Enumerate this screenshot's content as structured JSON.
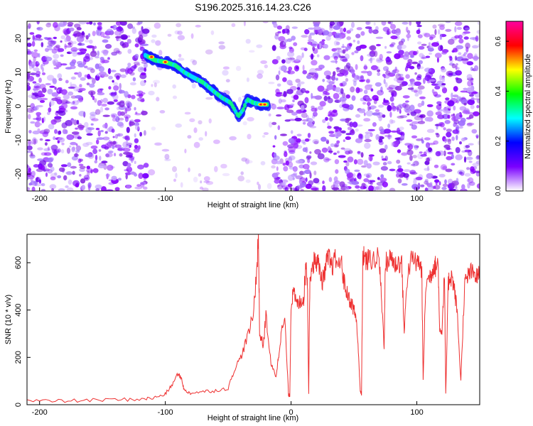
{
  "title": "S196.2025.316.14.23.C26",
  "chart_data": [
    {
      "type": "heatmap",
      "title": "S196.2025.316.14.23.C26",
      "xlabel": "Height of straight line (km)",
      "ylabel": "Frequency (Hz)",
      "xlim": [
        -210,
        150
      ],
      "ylim": [
        -25,
        25
      ],
      "xticks": [
        "-200",
        "-100",
        "0",
        "100"
      ],
      "yticks": [
        "-20",
        "-10",
        "0",
        "10",
        "20"
      ],
      "colorbar": {
        "label": "Normalized spectral amplitude",
        "range": [
          0,
          0.68
        ],
        "ticks": [
          "0.0",
          "0.2",
          "0.4",
          "0.6"
        ],
        "colors": [
          "#ffffff",
          "#7a00ff",
          "#0000ff",
          "#00ffff",
          "#00ff00",
          "#ffff00",
          "#ff0000",
          "#ff00a0"
        ]
      },
      "ridge": {
        "x": [
          -116,
          -108,
          -100,
          -92,
          -85,
          -78,
          -70,
          -62,
          -55,
          -48,
          -42,
          -38,
          -35,
          -30,
          -24,
          -18
        ],
        "y": [
          15,
          13.5,
          13,
          12,
          10,
          8.5,
          7,
          4.5,
          2.5,
          1,
          -3,
          -1,
          2,
          1,
          0.5,
          0.5
        ]
      },
      "gap_x": [
        -115,
        -14
      ]
    },
    {
      "type": "line",
      "xlabel": "Height of straight line (km)",
      "ylabel": "SNR (10 * v/v)",
      "xlim": [
        -210,
        150
      ],
      "ylim": [
        0,
        720
      ],
      "xticks": [
        "-200",
        "-100",
        "0",
        "100"
      ],
      "yticks": [
        "0",
        "200",
        "400",
        "600"
      ],
      "color": "#ee3030",
      "series": [
        {
          "x": [
            -210,
            -190,
            -170,
            -150,
            -130,
            -115,
            -108,
            -100,
            -95,
            -90,
            -87,
            -85,
            -80,
            -70,
            -60,
            -50,
            -45,
            -40,
            -35,
            -30,
            -27,
            -26,
            -25,
            -22,
            -20,
            -16,
            -12,
            -10,
            -8,
            -5,
            -2,
            -1,
            0,
            2,
            5,
            8,
            10,
            12,
            13,
            14,
            15,
            18,
            20,
            22,
            25,
            28,
            30,
            32,
            35,
            40,
            42,
            45,
            48,
            50,
            52,
            54,
            55,
            56,
            57,
            58,
            60,
            62,
            65,
            70,
            72,
            74,
            75,
            78,
            80,
            82,
            85,
            88,
            90,
            92,
            95,
            100,
            102,
            104,
            105,
            107,
            110,
            112,
            114,
            115,
            117,
            118,
            120,
            122,
            123,
            125,
            126,
            128,
            130,
            132,
            135,
            138,
            140,
            142,
            145,
            148,
            150
          ],
          "y": [
            18,
            15,
            17,
            20,
            22,
            25,
            30,
            45,
            80,
            130,
            110,
            60,
            50,
            55,
            60,
            70,
            150,
            200,
            280,
            380,
            600,
            720,
            300,
            250,
            380,
            170,
            120,
            200,
            300,
            360,
            40,
            40,
            430,
            470,
            420,
            440,
            450,
            600,
            520,
            50,
            550,
            600,
            610,
            590,
            520,
            600,
            620,
            580,
            610,
            600,
            520,
            460,
            430,
            400,
            360,
            170,
            60,
            40,
            600,
            640,
            600,
            620,
            610,
            620,
            440,
            250,
            600,
            610,
            630,
            590,
            600,
            600,
            300,
            520,
            610,
            600,
            600,
            560,
            100,
            500,
            540,
            560,
            600,
            580,
            600,
            330,
            310,
            560,
            40,
            510,
            540,
            540,
            480,
            400,
            100,
            510,
            530,
            560,
            550,
            540,
            550
          ]
        }
      ]
    }
  ]
}
